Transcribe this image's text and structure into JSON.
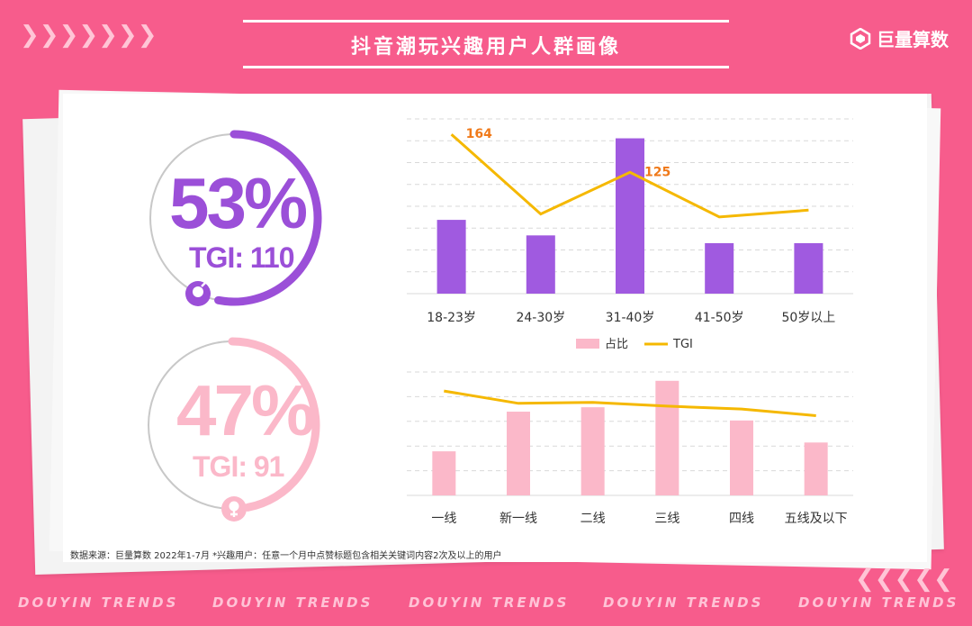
{
  "header": {
    "title": "抖音潮玩兴趣用户人群画像",
    "brand": "巨量算数",
    "chevrons": "❯❯❯❯❯❯❯",
    "chevrons_right": "❮❮❮❮❮"
  },
  "gender": {
    "male": {
      "percent": "53%",
      "tgi": "TGI: 110",
      "share": 0.53,
      "color": "#9b4fd8"
    },
    "female": {
      "percent": "47%",
      "tgi": "TGI: 91",
      "share": 0.47,
      "color": "#fbb8c9"
    }
  },
  "chart_data": [
    {
      "type": "bar",
      "categories": [
        "18-23岁",
        "24-30岁",
        "31-40岁",
        "41-50岁",
        "50岁以上"
      ],
      "series": [
        {
          "name": "占比",
          "kind": "bar",
          "values": [
            19,
            15,
            40,
            13,
            13
          ],
          "color": "#a05ae0"
        },
        {
          "name": "TGI",
          "kind": "line",
          "values": [
            164,
            82,
            125,
            79,
            86
          ],
          "color": "#f5b800"
        }
      ],
      "data_labels": [
        {
          "series": "TGI",
          "index": 0,
          "text": "164"
        },
        {
          "series": "TGI",
          "index": 2,
          "text": "125"
        }
      ],
      "legend": [
        "占比",
        "TGI"
      ],
      "legend_position": "bottom",
      "legend_colors": [
        "#fbb8c9",
        "#f5b800"
      ],
      "bar_ylim": [
        0,
        45
      ],
      "line_ylim": [
        0,
        180
      ],
      "grid": true
    },
    {
      "type": "bar",
      "categories": [
        "一线",
        "新一线",
        "二线",
        "三线",
        "四线",
        "五线及以下"
      ],
      "series": [
        {
          "name": "占比",
          "kind": "bar",
          "values": [
            10,
            19,
            20,
            26,
            17,
            12
          ],
          "color": "#fbb8c9"
        },
        {
          "name": "TGI",
          "kind": "line",
          "values": [
            110,
            97,
            98,
            94,
            91,
            84
          ],
          "color": "#f5b800"
        }
      ],
      "bar_ylim": [
        0,
        28
      ],
      "line_ylim": [
        0,
        130
      ],
      "grid": true
    }
  ],
  "footer": {
    "source": "数据来源：巨量算数 2022年1-7月 *兴趣用户：任意一个月中点赞标题包含相关关键词内容2次及以上的用户",
    "trends": [
      "DOUYIN TRENDS",
      "DOUYIN TRENDS",
      "DOUYIN TRENDS",
      "DOUYIN TRENDS",
      "DOUYIN TRENDS"
    ]
  }
}
